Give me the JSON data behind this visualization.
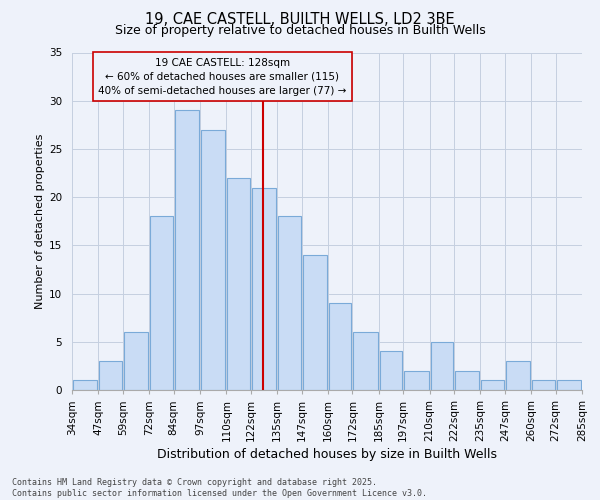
{
  "title1": "19, CAE CASTELL, BUILTH WELLS, LD2 3BE",
  "title2": "Size of property relative to detached houses in Builth Wells",
  "xlabel": "Distribution of detached houses by size in Builth Wells",
  "ylabel": "Number of detached properties",
  "annotation_title": "19 CAE CASTELL: 128sqm",
  "annotation_line1": "← 60% of detached houses are smaller (115)",
  "annotation_line2": "40% of semi-detached houses are larger (77) →",
  "footnote1": "Contains HM Land Registry data © Crown copyright and database right 2025.",
  "footnote2": "Contains public sector information licensed under the Open Government Licence v3.0.",
  "bar_bins": [
    34,
    47,
    59,
    72,
    84,
    97,
    110,
    122,
    135,
    147,
    160,
    172,
    185,
    197,
    210,
    222,
    235,
    247,
    260,
    272,
    285
  ],
  "bar_values": [
    1,
    3,
    6,
    18,
    29,
    27,
    22,
    21,
    18,
    14,
    9,
    6,
    4,
    2,
    5,
    2,
    1,
    3,
    1,
    1
  ],
  "property_size": 128,
  "bar_color": "#c9dcf5",
  "bar_edge_color": "#7aaad8",
  "vline_color": "#cc0000",
  "grid_color": "#c5cfe0",
  "bg_color": "#eef2fa",
  "annotation_box_color": "#cc0000",
  "ylim": [
    0,
    35
  ],
  "yticks": [
    0,
    5,
    10,
    15,
    20,
    25,
    30,
    35
  ],
  "title1_fontsize": 10.5,
  "title2_fontsize": 9,
  "xlabel_fontsize": 9,
  "ylabel_fontsize": 8,
  "tick_fontsize": 7.5,
  "ann_fontsize": 7.5,
  "footnote_fontsize": 6
}
